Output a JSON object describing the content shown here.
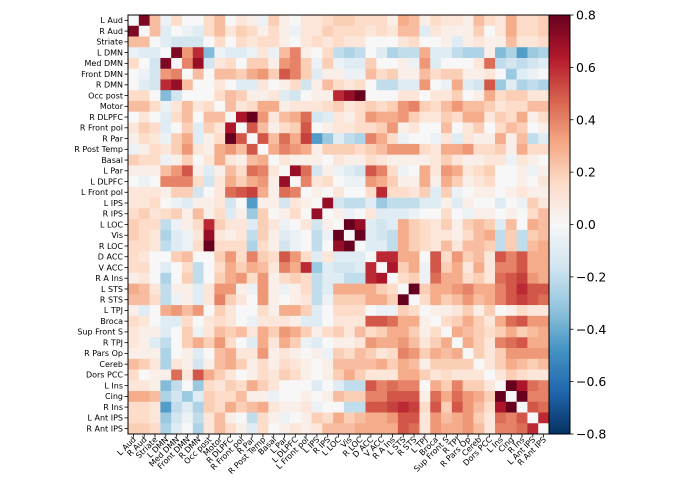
{
  "chart_data": {
    "type": "heatmap",
    "title": "",
    "xlabel": "",
    "ylabel": "",
    "colormap": "RdBu_r",
    "vmin": -0.8,
    "vmax": 0.8,
    "colorbar_ticks": [
      "-0.8",
      "-0.6",
      "-0.4",
      "-0.2",
      "0.0",
      "0.2",
      "0.4",
      "0.6",
      "0.8"
    ],
    "colorbar_position": "right",
    "matrix_storage": "lower-triangle, symmetric",
    "labels": [
      "L Aud",
      "R Aud",
      "Striate",
      "L DMN",
      "Med DMN",
      "Front DMN",
      "R DMN",
      "Occ post",
      "Motor",
      "R DLPFC",
      "R Front pol",
      "R Par",
      "R Post Temp",
      "Basal",
      "L Par",
      "L DLPFC",
      "L Front pol",
      "L IPS",
      "R IPS",
      "L LOC",
      "Vis",
      "R LOC",
      "D ACC",
      "V ACC",
      "R A Ins",
      "L STS",
      "R STS",
      "L TPJ",
      "Broca",
      "Sup Front S",
      "R TPJ",
      "R Pars Op",
      "Cereb",
      "Dors PCC",
      "L Ins",
      "Cing",
      "R Ins",
      "L Ant IPS",
      "R Ant IPS"
    ],
    "values": [
      [
        0
      ],
      [
        0.75,
        0
      ],
      [
        0.25,
        0.25,
        0
      ],
      [
        -0.05,
        -0.1,
        -0.1,
        0
      ],
      [
        0.15,
        0,
        -0.15,
        0.75,
        0
      ],
      [
        0,
        -0.05,
        -0.15,
        0.35,
        0.4,
        0
      ],
      [
        0,
        -0.1,
        -0.15,
        0.6,
        0.7,
        0.25,
        0
      ],
      [
        0.15,
        0.15,
        0,
        -0.35,
        -0.15,
        0,
        0,
        0
      ],
      [
        0.25,
        0.25,
        0.15,
        -0.05,
        0.1,
        0.25,
        0.1,
        0.15,
        0
      ],
      [
        0,
        0.1,
        0,
        -0.1,
        0.15,
        0.25,
        0,
        0.25,
        0.25,
        0
      ],
      [
        0.1,
        0.2,
        0.15,
        -0.1,
        0,
        0.2,
        -0.1,
        0.2,
        0.1,
        0.65,
        0
      ],
      [
        0.05,
        0.15,
        0.1,
        -0.05,
        0.2,
        0.3,
        -0.1,
        0.05,
        0.15,
        0.8,
        0.5,
        0
      ],
      [
        -0.05,
        0.05,
        0.15,
        0.1,
        0.2,
        0.35,
        0.1,
        0.05,
        0.3,
        0.35,
        0.25,
        0.5,
        0
      ],
      [
        0.2,
        0.15,
        0.15,
        -0.05,
        0.05,
        0.2,
        0,
        0.1,
        0.3,
        0.1,
        0.05,
        0.25,
        0.3,
        0
      ],
      [
        0.05,
        0.05,
        0.05,
        0.25,
        0.35,
        0.5,
        0.05,
        -0.1,
        0.05,
        0.25,
        0.15,
        0.45,
        0.4,
        0.1,
        0
      ],
      [
        0,
        -0.05,
        0,
        0.4,
        0.4,
        0.4,
        0.15,
        -0.15,
        0.1,
        0.3,
        0.2,
        0.3,
        0.35,
        0.05,
        0.7,
        0
      ],
      [
        0.1,
        0.1,
        0.1,
        0.05,
        0.2,
        0.2,
        -0.15,
        0,
        0.1,
        0.45,
        0.5,
        0.55,
        0.3,
        0.05,
        0.45,
        0.4,
        0
      ],
      [
        0.1,
        0.1,
        0.15,
        0,
        -0.05,
        -0.1,
        0.05,
        0.05,
        0.1,
        -0.15,
        0,
        -0.45,
        0.05,
        0.05,
        -0.15,
        0.1,
        0.05,
        0
      ],
      [
        0.15,
        0.2,
        0.1,
        0.15,
        0.2,
        0.05,
        0.25,
        0.05,
        0.15,
        -0.1,
        0.05,
        -0.3,
        0.2,
        0,
        0.05,
        0.15,
        0,
        0.7,
        0
      ],
      [
        0.2,
        0.15,
        0.15,
        -0.2,
        -0.05,
        0.05,
        0.15,
        0.6,
        0.2,
        0.1,
        0.1,
        -0.1,
        0.2,
        0.1,
        -0.05,
        0,
        0.1,
        -0.15,
        0.05,
        0
      ],
      [
        0.2,
        0.15,
        0.1,
        -0.25,
        -0.1,
        -0.05,
        0.1,
        0.7,
        0.1,
        0.05,
        0.1,
        -0.2,
        0.2,
        0.05,
        -0.1,
        -0.05,
        0,
        -0.2,
        -0.05,
        0.8,
        0
      ],
      [
        0.15,
        0.15,
        0.1,
        -0.2,
        -0.1,
        -0.05,
        0.15,
        0.8,
        0.15,
        0.15,
        0.15,
        -0.25,
        0.15,
        0.05,
        -0.15,
        -0.05,
        0,
        -0.2,
        0,
        0.7,
        0.85,
        0
      ],
      [
        0.15,
        0.1,
        0,
        0,
        0.2,
        0.25,
        0,
        0,
        0.2,
        0.35,
        0.15,
        0.4,
        0.2,
        0.15,
        0.5,
        0.35,
        0.15,
        -0.1,
        0.1,
        -0.1,
        -0.1,
        -0.1,
        0
      ],
      [
        0.15,
        0.15,
        0,
        -0.1,
        0,
        0.15,
        -0.2,
        0,
        0.15,
        0.3,
        0.2,
        0.3,
        0.25,
        0.1,
        0.4,
        0.3,
        0.6,
        -0.3,
        -0.1,
        -0.15,
        -0.15,
        -0.1,
        0.6,
        0
      ],
      [
        0.05,
        0.1,
        0,
        -0.25,
        0,
        0.2,
        -0.2,
        0,
        0.2,
        0.3,
        0.35,
        0.15,
        0.35,
        0.05,
        0.15,
        0.2,
        0.15,
        -0.2,
        -0.1,
        -0.1,
        -0.2,
        -0.2,
        0.6,
        0.65,
        0
      ],
      [
        0.3,
        0.25,
        0.1,
        -0.2,
        0.05,
        0.05,
        -0.1,
        0.1,
        0.35,
        0.35,
        0.05,
        -0.05,
        0.35,
        0.05,
        -0.05,
        0.05,
        0.15,
        -0.2,
        -0.1,
        0.3,
        0.3,
        0.3,
        0.3,
        0.2,
        0.15,
        0
      ],
      [
        0.25,
        0.25,
        0.15,
        -0.2,
        -0.05,
        0.05,
        -0.1,
        0.1,
        0.4,
        0.2,
        0.1,
        0,
        0.35,
        0.05,
        0,
        0.05,
        0.1,
        -0.2,
        -0.05,
        0.2,
        0.2,
        0.2,
        0.3,
        0.3,
        0.2,
        0.9,
        0
      ],
      [
        0.05,
        -0.1,
        0,
        0.3,
        0.35,
        0.25,
        0.35,
        0,
        0.2,
        0.1,
        0,
        0,
        0.15,
        0.05,
        0.3,
        0.3,
        0.2,
        -0.1,
        0,
        0.15,
        0.15,
        0.15,
        0,
        -0.05,
        -0.05,
        0.2,
        0.15,
        0
      ],
      [
        0.15,
        0.1,
        0,
        -0.1,
        -0.1,
        0.15,
        0,
        0.1,
        0.15,
        0.1,
        0,
        -0.05,
        0.1,
        0.1,
        0.1,
        0.05,
        -0.1,
        -0.1,
        0,
        0.1,
        0.1,
        0.1,
        0.5,
        0.5,
        0.45,
        0.3,
        0.3,
        0.05,
        0
      ],
      [
        0.1,
        0.05,
        0.05,
        -0.1,
        0,
        0.2,
        -0.05,
        0.1,
        0.25,
        0.2,
        0.25,
        0.1,
        0.3,
        0.2,
        0.35,
        0.3,
        0.2,
        0.05,
        0.15,
        0.2,
        0.1,
        0.25,
        0.15,
        0.2,
        0.3,
        0.3,
        0.2,
        0.05,
        0.15,
        0
      ],
      [
        0.1,
        0.05,
        -0.1,
        -0.2,
        0,
        0.2,
        0.3,
        0.2,
        0.35,
        0.15,
        0,
        -0.1,
        0.3,
        0.1,
        0.3,
        0.2,
        -0.05,
        -0.1,
        0,
        0.05,
        0.05,
        0.1,
        0.35,
        0.3,
        0.3,
        0.35,
        0.25,
        0.1,
        0.2,
        0.3,
        0
      ],
      [
        0.05,
        0.05,
        0.05,
        -0.25,
        0,
        0.05,
        -0.1,
        0,
        0.25,
        0.3,
        0.1,
        0.1,
        0.35,
        0.05,
        0.1,
        0.05,
        0,
        0.05,
        -0.05,
        0.2,
        0.15,
        0.25,
        0.2,
        0.1,
        0.15,
        0.4,
        0.35,
        0.2,
        0.3,
        0.25,
        0.3,
        0
      ],
      [
        0.25,
        0.2,
        0.1,
        -0.25,
        0.1,
        0.05,
        -0.15,
        0.05,
        0.25,
        0.3,
        0.2,
        0.05,
        0.15,
        0.05,
        0.15,
        0.1,
        0.05,
        0,
        0.05,
        0.25,
        0.25,
        0.25,
        0.25,
        0.3,
        0.2,
        0.3,
        0.25,
        0.05,
        0.2,
        0.2,
        0.2,
        0.2,
        0
      ],
      [
        0.15,
        0,
        0.05,
        0.05,
        0.45,
        0.1,
        0.5,
        0.3,
        0.2,
        0.1,
        0,
        0.05,
        0.15,
        0.1,
        0.2,
        0.15,
        0.05,
        0,
        0.05,
        0.2,
        0.3,
        0.2,
        0.1,
        0.1,
        0.1,
        0.3,
        0.3,
        0.2,
        0.1,
        0.15,
        0.1,
        0.1,
        0.1,
        0
      ],
      [
        0.1,
        0.1,
        0.05,
        -0.35,
        -0.2,
        0,
        -0.3,
        0.15,
        0.1,
        0.2,
        0.15,
        0.3,
        0.2,
        0.1,
        0,
        0,
        0,
        -0.1,
        0,
        -0.1,
        -0.2,
        -0.2,
        0.5,
        0.4,
        0.45,
        0.4,
        0.4,
        0,
        0.3,
        0.2,
        0.4,
        0.2,
        0.2,
        0.1,
        0
      ],
      [
        0.3,
        0.3,
        0.25,
        -0.25,
        -0.15,
        -0.3,
        -0.1,
        0.2,
        0.15,
        0.15,
        0.25,
        0.05,
        0.05,
        -0.05,
        0,
        0,
        0.05,
        0,
        0.05,
        0.25,
        0.2,
        0.2,
        0.4,
        0.4,
        0.5,
        0.5,
        0.5,
        0.05,
        0.45,
        0.3,
        0.45,
        0.35,
        0.3,
        0.2,
        0.8,
        0
      ],
      [
        0.15,
        0.15,
        0.1,
        -0.45,
        -0.2,
        -0.1,
        -0.25,
        0.2,
        0.15,
        0.3,
        0.2,
        0.25,
        0.3,
        0.1,
        0.05,
        0.05,
        0.1,
        -0.05,
        0,
        0,
        -0.2,
        -0.2,
        0.5,
        0.5,
        0.55,
        0.6,
        0.55,
        0.15,
        0.5,
        0.2,
        0.5,
        0.35,
        0.25,
        0.15,
        0.65,
        0.85,
        0
      ],
      [
        0.15,
        0.15,
        0.1,
        -0.3,
        -0.15,
        -0.05,
        -0.2,
        0.1,
        0.25,
        0.05,
        0,
        -0.2,
        0.15,
        0.05,
        -0.05,
        0,
        0.05,
        0.2,
        0.15,
        0.3,
        0.2,
        0.25,
        0.3,
        0.3,
        0.35,
        0.5,
        0.5,
        0.1,
        0.35,
        0.25,
        0.3,
        0.35,
        0.2,
        0.1,
        0.45,
        0.4,
        0.5,
        0
      ],
      [
        0.2,
        0.2,
        0.15,
        -0.25,
        -0.1,
        0,
        -0.25,
        0.1,
        0.25,
        0.15,
        0.05,
        -0.1,
        0.15,
        0,
        0.05,
        0.1,
        0.05,
        0.1,
        0.25,
        0.25,
        0.25,
        0.3,
        0.3,
        0.3,
        0.3,
        0.5,
        0.45,
        0.1,
        0.35,
        0.3,
        0.3,
        0.35,
        0.25,
        0.1,
        0.4,
        0.4,
        0.45,
        0.6,
        0
      ]
    ]
  }
}
